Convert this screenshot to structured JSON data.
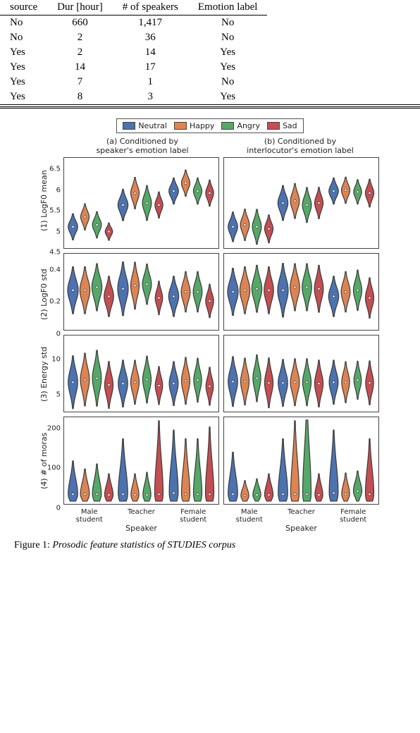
{
  "table": {
    "headers": [
      "source",
      "Dur [hour]",
      "# of speakers",
      "Emotion label"
    ],
    "rows": [
      [
        "No",
        "660",
        "1,417",
        "No"
      ],
      [
        "No",
        "2",
        "36",
        "No"
      ],
      [
        "Yes",
        "2",
        "14",
        "Yes"
      ],
      [
        "Yes",
        "14",
        "17",
        "Yes"
      ],
      [
        "Yes",
        "7",
        "1",
        "No"
      ],
      [
        "Yes",
        "8",
        "3",
        "Yes"
      ]
    ]
  },
  "legend": {
    "items": [
      {
        "label": "Neutral",
        "color": "#4c72b0"
      },
      {
        "label": "Happy",
        "color": "#dd8452"
      },
      {
        "label": "Angry",
        "color": "#55a868"
      },
      {
        "label": "Sad",
        "color": "#c44e52"
      }
    ]
  },
  "panel_titles": [
    "(a) Conditioned by\nspeaker's emotion label",
    "(b) Conditioned by\ninterlocutor's emotion label"
  ],
  "speakers": [
    "Male\nstudent",
    "Teacher",
    "Female\nstudent"
  ],
  "x_axis_label": "Speaker",
  "row_labels": [
    "(1) LogF0 mean",
    "(2) LogF0 std",
    "(3) Energy std",
    "(4) # of moras"
  ],
  "violin_style": {
    "stroke": "#3a3a3a",
    "stroke_width": 1.2,
    "median_r": 1.6
  },
  "rows": [
    {
      "height": 130,
      "ymin": 4.5,
      "ymax": 6.7,
      "ticks": [
        4.5,
        5.0,
        5.5,
        6.0,
        6.5
      ],
      "panels": [
        {
          "groups": [
            [
              {
                "c": "#4c72b0",
                "mean": 5.0,
                "std": 0.15,
                "w": 0.9
              },
              {
                "c": "#dd8452",
                "mean": 5.25,
                "std": 0.15,
                "w": 0.8
              },
              {
                "c": "#55a868",
                "mean": 5.05,
                "std": 0.15,
                "w": 0.85
              },
              {
                "c": "#c44e52",
                "mean": 4.88,
                "std": 0.1,
                "w": 0.7
              }
            ],
            [
              {
                "c": "#4c72b0",
                "mean": 5.55,
                "std": 0.18,
                "w": 0.95
              },
              {
                "c": "#dd8452",
                "mean": 5.85,
                "std": 0.18,
                "w": 0.8
              },
              {
                "c": "#55a868",
                "mean": 5.6,
                "std": 0.2,
                "w": 0.85
              },
              {
                "c": "#c44e52",
                "mean": 5.55,
                "std": 0.15,
                "w": 0.75
              }
            ],
            [
              {
                "c": "#4c72b0",
                "mean": 5.9,
                "std": 0.15,
                "w": 0.9
              },
              {
                "c": "#dd8452",
                "mean": 6.1,
                "std": 0.15,
                "w": 0.8
              },
              {
                "c": "#55a868",
                "mean": 5.9,
                "std": 0.15,
                "w": 0.8
              },
              {
                "c": "#c44e52",
                "mean": 5.85,
                "std": 0.15,
                "w": 0.75
              }
            ]
          ]
        },
        {
          "groups": [
            [
              {
                "c": "#4c72b0",
                "mean": 5.0,
                "std": 0.17,
                "w": 0.9
              },
              {
                "c": "#dd8452",
                "mean": 5.05,
                "std": 0.18,
                "w": 0.85
              },
              {
                "c": "#55a868",
                "mean": 5.0,
                "std": 0.2,
                "w": 0.85
              },
              {
                "c": "#c44e52",
                "mean": 4.95,
                "std": 0.16,
                "w": 0.8
              }
            ],
            [
              {
                "c": "#4c72b0",
                "mean": 5.6,
                "std": 0.2,
                "w": 0.95
              },
              {
                "c": "#dd8452",
                "mean": 5.65,
                "std": 0.2,
                "w": 0.85
              },
              {
                "c": "#55a868",
                "mean": 5.55,
                "std": 0.2,
                "w": 0.85
              },
              {
                "c": "#c44e52",
                "mean": 5.6,
                "std": 0.18,
                "w": 0.8
              }
            ],
            [
              {
                "c": "#4c72b0",
                "mean": 5.9,
                "std": 0.15,
                "w": 0.9
              },
              {
                "c": "#dd8452",
                "mean": 5.92,
                "std": 0.15,
                "w": 0.8
              },
              {
                "c": "#55a868",
                "mean": 5.88,
                "std": 0.14,
                "w": 0.75
              },
              {
                "c": "#c44e52",
                "mean": 5.85,
                "std": 0.16,
                "w": 0.8
              }
            ]
          ]
        }
      ]
    },
    {
      "height": 110,
      "ymin": 0.0,
      "ymax": 0.48,
      "ticks": [
        0.0,
        0.2,
        0.4
      ],
      "panels": [
        {
          "groups": [
            [
              {
                "c": "#4c72b0",
                "mean": 0.25,
                "std": 0.07,
                "w": 1.0
              },
              {
                "c": "#dd8452",
                "mean": 0.25,
                "std": 0.07,
                "w": 0.95
              },
              {
                "c": "#55a868",
                "mean": 0.27,
                "std": 0.07,
                "w": 0.95
              },
              {
                "c": "#c44e52",
                "mean": 0.21,
                "std": 0.06,
                "w": 0.9
              }
            ],
            [
              {
                "c": "#4c72b0",
                "mean": 0.26,
                "std": 0.08,
                "w": 1.0
              },
              {
                "c": "#dd8452",
                "mean": 0.28,
                "std": 0.07,
                "w": 0.8
              },
              {
                "c": "#55a868",
                "mean": 0.29,
                "std": 0.06,
                "w": 0.85
              },
              {
                "c": "#c44e52",
                "mean": 0.2,
                "std": 0.05,
                "w": 0.7
              }
            ],
            [
              {
                "c": "#4c72b0",
                "mean": 0.21,
                "std": 0.06,
                "w": 0.95
              },
              {
                "c": "#dd8452",
                "mean": 0.24,
                "std": 0.06,
                "w": 0.85
              },
              {
                "c": "#55a868",
                "mean": 0.24,
                "std": 0.06,
                "w": 0.85
              },
              {
                "c": "#c44e52",
                "mean": 0.18,
                "std": 0.05,
                "w": 0.75
              }
            ]
          ]
        },
        {
          "groups": [
            [
              {
                "c": "#4c72b0",
                "mean": 0.24,
                "std": 0.07,
                "w": 1.0
              },
              {
                "c": "#dd8452",
                "mean": 0.25,
                "std": 0.07,
                "w": 0.95
              },
              {
                "c": "#55a868",
                "mean": 0.26,
                "std": 0.07,
                "w": 0.95
              },
              {
                "c": "#c44e52",
                "mean": 0.25,
                "std": 0.07,
                "w": 0.9
              }
            ],
            [
              {
                "c": "#4c72b0",
                "mean": 0.25,
                "std": 0.08,
                "w": 1.0
              },
              {
                "c": "#dd8452",
                "mean": 0.27,
                "std": 0.07,
                "w": 0.9
              },
              {
                "c": "#55a868",
                "mean": 0.27,
                "std": 0.07,
                "w": 0.9
              },
              {
                "c": "#c44e52",
                "mean": 0.26,
                "std": 0.07,
                "w": 0.85
              }
            ],
            [
              {
                "c": "#4c72b0",
                "mean": 0.21,
                "std": 0.06,
                "w": 0.95
              },
              {
                "c": "#dd8452",
                "mean": 0.24,
                "std": 0.06,
                "w": 0.85
              },
              {
                "c": "#55a868",
                "mean": 0.25,
                "std": 0.06,
                "w": 0.8
              },
              {
                "c": "#c44e52",
                "mean": 0.2,
                "std": 0.06,
                "w": 0.8
              }
            ]
          ]
        }
      ]
    },
    {
      "height": 110,
      "ymin": 2,
      "ymax": 13,
      "ticks": [
        5,
        10
      ],
      "panels": [
        {
          "groups": [
            [
              {
                "c": "#4c72b0",
                "mean": 6.2,
                "std": 1.8,
                "w": 0.9
              },
              {
                "c": "#dd8452",
                "mean": 6.6,
                "std": 1.8,
                "w": 0.85
              },
              {
                "c": "#55a868",
                "mean": 6.8,
                "std": 1.9,
                "w": 0.85
              },
              {
                "c": "#c44e52",
                "mean": 5.8,
                "std": 1.6,
                "w": 0.8
              }
            ],
            [
              {
                "c": "#4c72b0",
                "mean": 6.0,
                "std": 1.6,
                "w": 0.9
              },
              {
                "c": "#dd8452",
                "mean": 6.2,
                "std": 1.5,
                "w": 0.8
              },
              {
                "c": "#55a868",
                "mean": 6.6,
                "std": 1.6,
                "w": 0.8
              },
              {
                "c": "#c44e52",
                "mean": 5.7,
                "std": 1.3,
                "w": 0.7
              }
            ],
            [
              {
                "c": "#4c72b0",
                "mean": 6.0,
                "std": 1.5,
                "w": 0.85
              },
              {
                "c": "#dd8452",
                "mean": 6.4,
                "std": 1.6,
                "w": 0.8
              },
              {
                "c": "#55a868",
                "mean": 6.5,
                "std": 1.5,
                "w": 0.75
              },
              {
                "c": "#c44e52",
                "mean": 5.6,
                "std": 1.3,
                "w": 0.7
              }
            ]
          ]
        },
        {
          "groups": [
            [
              {
                "c": "#4c72b0",
                "mean": 6.3,
                "std": 1.7,
                "w": 0.9
              },
              {
                "c": "#dd8452",
                "mean": 6.3,
                "std": 1.6,
                "w": 0.8
              },
              {
                "c": "#55a868",
                "mean": 6.8,
                "std": 1.6,
                "w": 0.75
              },
              {
                "c": "#c44e52",
                "mean": 6.1,
                "std": 1.7,
                "w": 0.8
              }
            ],
            [
              {
                "c": "#4c72b0",
                "mean": 6.1,
                "std": 1.6,
                "w": 0.9
              },
              {
                "c": "#dd8452",
                "mean": 6.2,
                "std": 1.6,
                "w": 0.85
              },
              {
                "c": "#55a868",
                "mean": 6.2,
                "std": 1.6,
                "w": 0.8
              },
              {
                "c": "#c44e52",
                "mean": 6.0,
                "std": 1.6,
                "w": 0.8
              }
            ],
            [
              {
                "c": "#4c72b0",
                "mean": 6.2,
                "std": 1.5,
                "w": 0.85
              },
              {
                "c": "#dd8452",
                "mean": 6.2,
                "std": 1.4,
                "w": 0.75
              },
              {
                "c": "#55a868",
                "mean": 6.5,
                "std": 1.3,
                "w": 0.7
              },
              {
                "c": "#c44e52",
                "mean": 6.1,
                "std": 1.5,
                "w": 0.75
              }
            ]
          ]
        }
      ]
    },
    {
      "height": 125,
      "ymin": 0,
      "ymax": 220,
      "ticks": [
        0,
        100,
        200
      ],
      "panels": [
        {
          "groups": [
            [
              {
                "c": "#4c72b0",
                "mean": 22,
                "std": 18,
                "w": 0.9,
                "skew": 2.2
              },
              {
                "c": "#dd8452",
                "mean": 22,
                "std": 15,
                "w": 0.85,
                "skew": 2.0
              },
              {
                "c": "#55a868",
                "mean": 22,
                "std": 18,
                "w": 0.85,
                "skew": 2.0
              },
              {
                "c": "#c44e52",
                "mean": 20,
                "std": 14,
                "w": 0.8,
                "skew": 1.8
              }
            ],
            [
              {
                "c": "#4c72b0",
                "mean": 22,
                "std": 22,
                "w": 0.9,
                "skew": 3.0
              },
              {
                "c": "#dd8452",
                "mean": 20,
                "std": 14,
                "w": 0.75,
                "skew": 1.8
              },
              {
                "c": "#55a868",
                "mean": 20,
                "std": 15,
                "w": 0.75,
                "skew": 1.8
              },
              {
                "c": "#c44e52",
                "mean": 22,
                "std": 25,
                "w": 0.8,
                "skew": 3.5
              }
            ],
            [
              {
                "c": "#4c72b0",
                "mean": 25,
                "std": 25,
                "w": 0.85,
                "skew": 3.0
              },
              {
                "c": "#dd8452",
                "mean": 22,
                "std": 22,
                "w": 0.8,
                "skew": 3.0
              },
              {
                "c": "#55a868",
                "mean": 22,
                "std": 22,
                "w": 0.8,
                "skew": 3.0
              },
              {
                "c": "#c44e52",
                "mean": 22,
                "std": 25,
                "w": 0.8,
                "skew": 3.2
              }
            ]
          ]
        },
        {
          "groups": [
            [
              {
                "c": "#4c72b0",
                "mean": 22,
                "std": 20,
                "w": 0.9,
                "skew": 2.5
              },
              {
                "c": "#dd8452",
                "mean": 18,
                "std": 12,
                "w": 0.75,
                "skew": 1.5
              },
              {
                "c": "#55a868",
                "mean": 20,
                "std": 12,
                "w": 0.75,
                "skew": 1.6
              },
              {
                "c": "#c44e52",
                "mean": 20,
                "std": 14,
                "w": 0.8,
                "skew": 1.8
              }
            ],
            [
              {
                "c": "#4c72b0",
                "mean": 22,
                "std": 22,
                "w": 0.9,
                "skew": 3.0
              },
              {
                "c": "#dd8452",
                "mean": 22,
                "std": 25,
                "w": 0.8,
                "skew": 3.5
              },
              {
                "c": "#55a868",
                "mean": 22,
                "std": 28,
                "w": 0.8,
                "skew": 4.0
              },
              {
                "c": "#c44e52",
                "mean": 20,
                "std": 14,
                "w": 0.75,
                "skew": 1.8
              }
            ],
            [
              {
                "c": "#4c72b0",
                "mean": 25,
                "std": 25,
                "w": 0.85,
                "skew": 3.0
              },
              {
                "c": "#dd8452",
                "mean": 22,
                "std": 14,
                "w": 0.75,
                "skew": 1.8
              },
              {
                "c": "#55a868",
                "mean": 30,
                "std": 16,
                "w": 0.8,
                "skew": 1.5
              },
              {
                "c": "#c44e52",
                "mean": 22,
                "std": 22,
                "w": 0.8,
                "skew": 3.0
              }
            ]
          ]
        }
      ]
    }
  ],
  "caption": {
    "prefix": "Figure 1:",
    "body": "Prosodic feature statistics of STUDIES corpus"
  }
}
